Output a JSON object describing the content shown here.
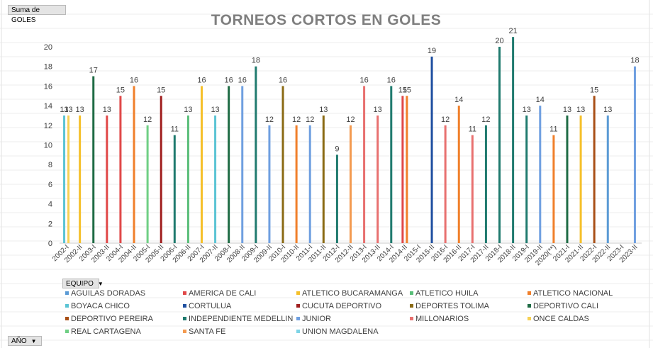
{
  "pivot": {
    "value_field": "Suma de GOLES",
    "legend_field": "EQUIPO",
    "axis_field": "AÑO"
  },
  "chart_data": {
    "type": "bar",
    "title": "TORNEOS CORTOS EN GOLES",
    "xlabel": "",
    "ylabel": "",
    "ylim": [
      0,
      20
    ],
    "yticks": [
      0,
      2,
      4,
      6,
      8,
      10,
      12,
      14,
      16,
      18,
      20
    ],
    "grid": false,
    "legend_position": "bottom",
    "categories": [
      "2002-I",
      "2002-II",
      "2003-I",
      "2003-II",
      "2004-I",
      "2004-II",
      "2005-I",
      "2005-II",
      "2006-I",
      "2006-II",
      "2007-I",
      "2007-II",
      "2008-I",
      "2008-II",
      "2009-I",
      "2009-II",
      "2010-I",
      "2010-II",
      "2011-I",
      "2011-II",
      "2012-I",
      "2012-II",
      "2013-I",
      "2013-II",
      "2014-I",
      "2014-II",
      "2015-I",
      "2015-II",
      "2016-I",
      "2016-II",
      "2017-I",
      "2017-II",
      "2018-I",
      "2018-II",
      "2019-I",
      "2019-II",
      "2020(**)",
      "2021-I",
      "2021-II",
      "2022-I",
      "2022-II",
      "2023-I",
      "2023-II"
    ],
    "series": [
      {
        "name": "AGUILAS DORADAS",
        "color": "#5b9bd5"
      },
      {
        "name": "AMERICA DE CALI",
        "color": "#e04848"
      },
      {
        "name": "ATLETICO BUCARAMANGA",
        "color": "#f5c02a"
      },
      {
        "name": "ATLETICO HUILA",
        "color": "#58bd78"
      },
      {
        "name": "ATLETICO NACIONAL",
        "color": "#f07f2a"
      },
      {
        "name": "BOYACA CHICO",
        "color": "#5bc4d4"
      },
      {
        "name": "CORTULUA",
        "color": "#1f4fa0"
      },
      {
        "name": "CUCUTA DEPORTIVO",
        "color": "#a01f1f"
      },
      {
        "name": "DEPORTES TOLIMA",
        "color": "#8a6a14"
      },
      {
        "name": "DEPORTIVO CALI",
        "color": "#1e6b44"
      },
      {
        "name": "DEPORTIVO PEREIRA",
        "color": "#a84e15"
      },
      {
        "name": "INDEPENDIENTE MEDELLIN",
        "color": "#1f7a6e"
      },
      {
        "name": "JUNIOR",
        "color": "#6f9fe0"
      },
      {
        "name": "MILLONARIOS",
        "color": "#e8706f"
      },
      {
        "name": "ONCE CALDAS",
        "color": "#f7d154"
      },
      {
        "name": "REAL CARTAGENA",
        "color": "#6fcf84"
      },
      {
        "name": "SANTA FE",
        "color": "#f39a50"
      },
      {
        "name": "UNION MAGDALENA",
        "color": "#7ed4e6"
      }
    ],
    "bars": [
      {
        "category": "2002-I",
        "series": "BOYACA CHICO",
        "value": 13
      },
      {
        "category": "2002-I",
        "series": "ONCE CALDAS",
        "value": 13
      },
      {
        "category": "2002-II",
        "series": "ATLETICO BUCARAMANGA",
        "value": 13
      },
      {
        "category": "2003-I",
        "series": "DEPORTIVO CALI",
        "value": 17
      },
      {
        "category": "2003-II",
        "series": "AMERICA DE CALI",
        "value": 13
      },
      {
        "category": "2004-I",
        "series": "AMERICA DE CALI",
        "value": 15
      },
      {
        "category": "2004-II",
        "series": "ATLETICO NACIONAL",
        "value": 16
      },
      {
        "category": "2005-I",
        "series": "REAL CARTAGENA",
        "value": 12
      },
      {
        "category": "2005-II",
        "series": "CUCUTA DEPORTIVO",
        "value": 15
      },
      {
        "category": "2006-I",
        "series": "INDEPENDIENTE MEDELLIN",
        "value": 11
      },
      {
        "category": "2006-II",
        "series": "ATLETICO HUILA",
        "value": 13
      },
      {
        "category": "2007-I",
        "series": "ATLETICO BUCARAMANGA",
        "value": 16
      },
      {
        "category": "2007-II",
        "series": "BOYACA CHICO",
        "value": 13
      },
      {
        "category": "2008-I",
        "series": "DEPORTIVO CALI",
        "value": 16
      },
      {
        "category": "2008-II",
        "series": "JUNIOR",
        "value": 16
      },
      {
        "category": "2009-I",
        "series": "INDEPENDIENTE MEDELLIN",
        "value": 18
      },
      {
        "category": "2009-II",
        "series": "JUNIOR",
        "value": 12
      },
      {
        "category": "2010-I",
        "series": "DEPORTES TOLIMA",
        "value": 16
      },
      {
        "category": "2010-II",
        "series": "ATLETICO NACIONAL",
        "value": 12
      },
      {
        "category": "2011-I",
        "series": "JUNIOR",
        "value": 12
      },
      {
        "category": "2011-II",
        "series": "DEPORTES TOLIMA",
        "value": 13
      },
      {
        "category": "2012-I",
        "series": "INDEPENDIENTE MEDELLIN",
        "value": 9
      },
      {
        "category": "2012-II",
        "series": "SANTA FE",
        "value": 12
      },
      {
        "category": "2013-I",
        "series": "MILLONARIOS",
        "value": 16
      },
      {
        "category": "2013-II",
        "series": "MILLONARIOS",
        "value": 13
      },
      {
        "category": "2014-I",
        "series": "INDEPENDIENTE MEDELLIN",
        "value": 16
      },
      {
        "category": "2014-II",
        "series": "AMERICA DE CALI",
        "value": 15
      },
      {
        "category": "2014-II",
        "series": "ATLETICO NACIONAL",
        "value": 15
      },
      {
        "category": "2015-II",
        "series": "CORTULUA",
        "value": 19
      },
      {
        "category": "2016-I",
        "series": "MILLONARIOS",
        "value": 12
      },
      {
        "category": "2016-II",
        "series": "ATLETICO NACIONAL",
        "value": 14
      },
      {
        "category": "2017-I",
        "series": "MILLONARIOS",
        "value": 11
      },
      {
        "category": "2017-II",
        "series": "INDEPENDIENTE MEDELLIN",
        "value": 12
      },
      {
        "category": "2018-I",
        "series": "INDEPENDIENTE MEDELLIN",
        "value": 20
      },
      {
        "category": "2018-II",
        "series": "INDEPENDIENTE MEDELLIN",
        "value": 21
      },
      {
        "category": "2019-I",
        "series": "INDEPENDIENTE MEDELLIN",
        "value": 13
      },
      {
        "category": "2019-II",
        "series": "JUNIOR",
        "value": 14
      },
      {
        "category": "2020(**)",
        "series": "ATLETICO NACIONAL",
        "value": 11
      },
      {
        "category": "2021-I",
        "series": "DEPORTIVO CALI",
        "value": 13
      },
      {
        "category": "2021-II",
        "series": "ATLETICO BUCARAMANGA",
        "value": 13
      },
      {
        "category": "2022-I",
        "series": "DEPORTIVO PEREIRA",
        "value": 15
      },
      {
        "category": "2022-II",
        "series": "AGUILAS DORADAS",
        "value": 13
      },
      {
        "category": "2023-II",
        "series": "JUNIOR",
        "value": 18
      }
    ]
  }
}
